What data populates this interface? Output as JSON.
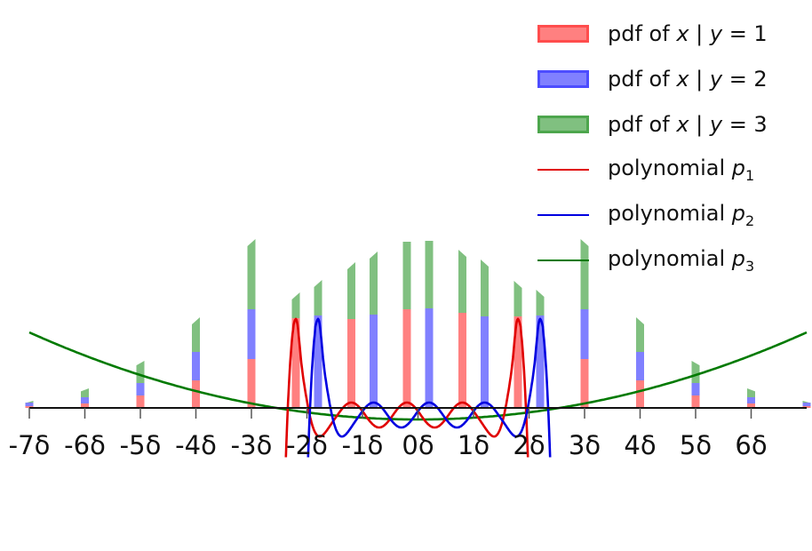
{
  "chart_data": {
    "type": "bar",
    "title": "",
    "xlabel": "",
    "ylabel": "",
    "x_unit": "δ",
    "grid": false,
    "legend_position": "upper right",
    "xticks": [
      -7,
      -6,
      -5,
      -4,
      -3,
      -2,
      -1,
      0,
      1,
      2,
      3,
      4,
      5,
      6
    ],
    "xtick_labels": [
      "-7δ",
      "-6δ",
      "-5δ",
      "-4δ",
      "-3δ",
      "-2δ",
      "-1δ",
      "0δ",
      "1δ",
      "2δ",
      "3δ",
      "4δ",
      "5δ",
      "6δ"
    ],
    "xlim": [
      -7.05,
      7.0
    ],
    "stacked_bars": {
      "description": "Stacked pdf bars (red = y=1, blue = y=2, green = y=3), heights in pixel-relative units above axis",
      "x": [
        -7.0,
        -6.0,
        -5.0,
        -4.0,
        -3.0,
        -2.2,
        -1.8,
        -1.2,
        -0.8,
        -0.2,
        0.2,
        0.8,
        1.2,
        1.8,
        2.2,
        3.0,
        4.0,
        5.0,
        6.0,
        7.0
      ],
      "red": [
        2,
        5,
        14,
        31,
        55,
        101,
        0,
        100,
        0,
        111,
        0,
        107,
        0,
        103,
        0,
        55,
        31,
        14,
        5,
        2
      ],
      "blue": [
        4,
        7,
        14,
        32,
        56,
        0,
        104,
        0,
        105,
        0,
        112,
        0,
        103,
        0,
        104,
        56,
        32,
        14,
        7,
        4
      ],
      "green": [
        2,
        10,
        25,
        39,
        79,
        29,
        40,
        64,
        71,
        76,
        76,
        71,
        64,
        40,
        29,
        79,
        39,
        25,
        10,
        2
      ]
    },
    "series": [
      {
        "name": "pdf of x | y=1",
        "kind": "bar",
        "color": "#ff8080"
      },
      {
        "name": "pdf of x | y=2",
        "kind": "bar",
        "color": "#8080ff"
      },
      {
        "name": "pdf of x | y=3",
        "kind": "bar",
        "color": "#80c080"
      },
      {
        "name": "polynomial p1",
        "kind": "line",
        "color": "#ff0000",
        "description": "oscillating polynomial with peaks near -2.2δ, -1.2δ, -0.2δ, 0.8δ, 1.8δ and steep descent beyond ±2.3δ"
      },
      {
        "name": "polynomial p2",
        "kind": "line",
        "color": "#0000ff",
        "description": "oscillating polynomial with peaks near -1.8δ, -0.8δ, 0.2δ, 1.2δ, 2.2δ and steep descent beyond ±2.4δ"
      },
      {
        "name": "polynomial p3",
        "kind": "line",
        "color": "#008000",
        "description": "upward parabola with minimum slightly below axis near 0δ, rising to ~85 px above axis at ±7δ"
      }
    ]
  },
  "legend": {
    "items": [
      {
        "kind": "patch",
        "prefix": "pdf of ",
        "var": "x",
        "sep": " | ",
        "cond": "y",
        "eq": " = 1",
        "face": "#ff8080",
        "edge": "#ff4d4d"
      },
      {
        "kind": "patch",
        "prefix": "pdf of ",
        "var": "x",
        "sep": " | ",
        "cond": "y",
        "eq": " = 2",
        "face": "#8080ff",
        "edge": "#4d4dff"
      },
      {
        "kind": "patch",
        "prefix": "pdf of ",
        "var": "x",
        "sep": " | ",
        "cond": "y",
        "eq": " = 3",
        "face": "#80c080",
        "edge": "#4da64d"
      },
      {
        "kind": "line",
        "prefix": "polynomial ",
        "var": "p",
        "sub": "1",
        "color": "#e00000"
      },
      {
        "kind": "line",
        "prefix": "polynomial ",
        "var": "p",
        "sub": "2",
        "color": "#0000e0"
      },
      {
        "kind": "line",
        "prefix": "polynomial ",
        "var": "p",
        "sub": "3",
        "color": "#007a00"
      }
    ]
  },
  "colors": {
    "axis": "#111111",
    "tick": "#555555",
    "red_bar": "#ff8080",
    "blue_bar": "#8080ff",
    "green_bar": "#80c080",
    "red_line": "#e00000",
    "blue_line": "#0000e0",
    "green_line": "#007a00"
  }
}
